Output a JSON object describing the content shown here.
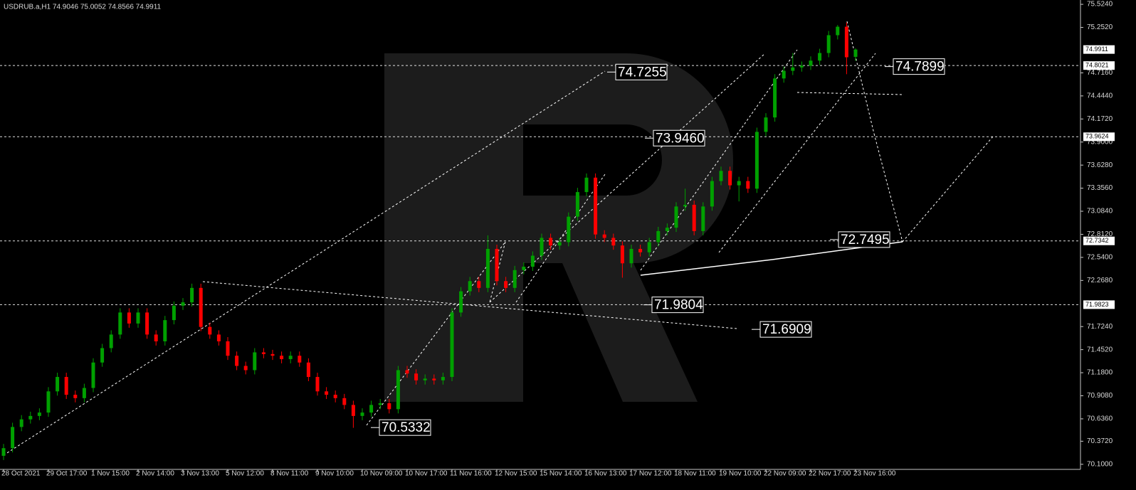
{
  "chart_data": {
    "type": "candlestick",
    "title": "USDRUB.a,H1  74.9046 75.0052 74.8566 74.9911",
    "ylim": [
      70.04,
      75.575
    ],
    "yticks": [
      {
        "value": 75.524,
        "label": "75.5240"
      },
      {
        "value": 75.252,
        "label": "75.2520"
      },
      {
        "value": 74.716,
        "label": "74.7160"
      },
      {
        "value": 74.444,
        "label": "74.4440"
      },
      {
        "value": 74.172,
        "label": "74.1720"
      },
      {
        "value": 73.9,
        "label": "73.9000"
      },
      {
        "value": 73.628,
        "label": "73.6280"
      },
      {
        "value": 73.356,
        "label": "73.3560"
      },
      {
        "value": 73.084,
        "label": "73.0840"
      },
      {
        "value": 72.812,
        "label": "72.8120"
      },
      {
        "value": 72.54,
        "label": "72.5400"
      },
      {
        "value": 72.268,
        "label": "72.2680"
      },
      {
        "value": 71.724,
        "label": "71.7240"
      },
      {
        "value": 71.452,
        "label": "71.4520"
      },
      {
        "value": 71.18,
        "label": "71.1800"
      },
      {
        "value": 70.908,
        "label": "70.9080"
      },
      {
        "value": 70.636,
        "label": "70.6360"
      },
      {
        "value": 70.372,
        "label": "70.3720"
      },
      {
        "value": 70.1,
        "label": "70.1000"
      }
    ],
    "xticks": [
      "28 Oct 2021",
      "29 Oct 17:00",
      "1 Nov 15:00",
      "2 Nov 14:00",
      "3 Nov 13:00",
      "5 Nov 12:00",
      "8 Nov 11:00",
      "9 Nov 10:00",
      "10 Nov 09:00",
      "10 Nov 17:00",
      "11 Nov 16:00",
      "12 Nov 15:00",
      "15 Nov 14:00",
      "16 Nov 13:00",
      "17 Nov 12:00",
      "18 Nov 11:00",
      "19 Nov 10:00",
      "22 Nov 09:00",
      "22 Nov 17:00",
      "23 Nov 16:00"
    ],
    "up_color": "#00a000",
    "down_color": "#ff0000",
    "ohlc": [
      [
        70.2,
        70.34,
        70.15,
        70.29
      ],
      [
        70.29,
        70.59,
        70.24,
        70.54
      ],
      [
        70.54,
        70.68,
        70.49,
        70.63
      ],
      [
        70.63,
        70.72,
        70.58,
        70.67
      ],
      [
        70.67,
        70.76,
        70.62,
        70.71
      ],
      [
        70.71,
        71.01,
        70.66,
        70.96
      ],
      [
        70.96,
        71.18,
        70.91,
        71.13
      ],
      [
        71.13,
        71.18,
        70.87,
        70.92
      ],
      [
        70.92,
        70.97,
        70.83,
        70.88
      ],
      [
        70.88,
        71.05,
        70.83,
        71.0
      ],
      [
        71.0,
        71.35,
        70.95,
        71.3
      ],
      [
        71.3,
        71.52,
        71.25,
        71.47
      ],
      [
        71.47,
        71.68,
        71.42,
        71.63
      ],
      [
        71.63,
        71.94,
        71.58,
        71.89
      ],
      [
        71.89,
        71.94,
        71.71,
        71.76
      ],
      [
        71.76,
        71.94,
        71.71,
        71.89
      ],
      [
        71.89,
        71.94,
        71.58,
        71.63
      ],
      [
        71.63,
        71.68,
        71.5,
        71.55
      ],
      [
        71.55,
        71.85,
        71.5,
        71.8
      ],
      [
        71.8,
        72.02,
        71.75,
        71.97
      ],
      [
        71.97,
        72.06,
        71.92,
        72.01
      ],
      [
        72.01,
        72.23,
        71.96,
        72.18
      ],
      [
        72.18,
        72.23,
        71.67,
        71.72
      ],
      [
        71.72,
        71.77,
        71.58,
        71.63
      ],
      [
        71.63,
        71.68,
        71.5,
        71.55
      ],
      [
        71.55,
        71.6,
        71.33,
        71.38
      ],
      [
        71.38,
        71.43,
        71.21,
        71.26
      ],
      [
        71.26,
        71.31,
        71.16,
        71.21
      ],
      [
        71.21,
        71.47,
        71.16,
        71.42
      ],
      [
        71.42,
        71.47,
        71.35,
        71.4
      ],
      [
        71.4,
        71.45,
        71.33,
        71.38
      ],
      [
        71.38,
        71.43,
        71.29,
        71.34
      ],
      [
        71.34,
        71.43,
        71.29,
        71.38
      ],
      [
        71.38,
        71.43,
        71.25,
        71.3
      ],
      [
        71.3,
        71.35,
        71.08,
        71.13
      ],
      [
        71.13,
        71.18,
        70.91,
        70.96
      ],
      [
        70.96,
        71.01,
        70.87,
        70.92
      ],
      [
        70.92,
        70.97,
        70.83,
        70.88
      ],
      [
        70.88,
        70.93,
        70.75,
        70.8
      ],
      [
        70.8,
        70.85,
        70.53,
        70.67
      ],
      [
        70.67,
        70.76,
        70.62,
        70.71
      ],
      [
        70.71,
        70.85,
        70.66,
        70.8
      ],
      [
        70.8,
        70.87,
        70.75,
        70.82
      ],
      [
        70.82,
        70.87,
        70.7,
        70.75
      ],
      [
        70.75,
        71.26,
        70.7,
        71.21
      ],
      [
        71.21,
        71.26,
        71.12,
        71.17
      ],
      [
        71.17,
        71.22,
        71.04,
        71.09
      ],
      [
        71.09,
        71.16,
        71.04,
        71.11
      ],
      [
        71.11,
        71.16,
        71.04,
        71.09
      ],
      [
        71.09,
        71.18,
        71.04,
        71.13
      ],
      [
        71.13,
        71.94,
        71.08,
        71.89
      ],
      [
        71.89,
        72.19,
        71.84,
        72.14
      ],
      [
        72.14,
        72.31,
        72.09,
        72.26
      ],
      [
        72.26,
        72.31,
        72.13,
        72.18
      ],
      [
        72.18,
        72.8,
        72.13,
        72.64
      ],
      [
        72.64,
        72.69,
        72.21,
        72.26
      ],
      [
        72.26,
        72.31,
        72.13,
        72.18
      ],
      [
        72.18,
        72.44,
        72.13,
        72.39
      ],
      [
        72.39,
        72.48,
        72.34,
        72.43
      ],
      [
        72.43,
        72.61,
        72.38,
        72.56
      ],
      [
        72.56,
        72.82,
        72.51,
        72.77
      ],
      [
        72.77,
        72.82,
        72.63,
        72.68
      ],
      [
        72.68,
        72.77,
        72.63,
        72.72
      ],
      [
        72.72,
        73.07,
        72.67,
        73.02
      ],
      [
        73.02,
        73.36,
        72.97,
        73.31
      ],
      [
        73.31,
        73.53,
        73.26,
        73.48
      ],
      [
        73.48,
        73.53,
        72.76,
        72.81
      ],
      [
        72.81,
        72.86,
        72.72,
        72.77
      ],
      [
        72.77,
        72.82,
        72.63,
        72.68
      ],
      [
        72.68,
        72.73,
        72.3,
        72.47
      ],
      [
        72.47,
        72.69,
        72.42,
        72.64
      ],
      [
        72.64,
        72.69,
        72.55,
        72.6
      ],
      [
        72.6,
        72.77,
        72.55,
        72.72
      ],
      [
        72.72,
        72.9,
        72.67,
        72.85
      ],
      [
        72.85,
        72.94,
        72.8,
        72.89
      ],
      [
        72.89,
        73.19,
        72.84,
        73.14
      ],
      [
        73.14,
        73.35,
        73.09,
        73.16
      ],
      [
        73.16,
        73.21,
        72.8,
        72.85
      ],
      [
        72.85,
        73.19,
        72.8,
        73.14
      ],
      [
        73.14,
        73.49,
        73.09,
        73.44
      ],
      [
        73.44,
        73.61,
        73.39,
        73.56
      ],
      [
        73.56,
        73.61,
        73.34,
        73.39
      ],
      [
        73.39,
        73.49,
        73.2,
        73.44
      ],
      [
        73.44,
        73.49,
        73.3,
        73.35
      ],
      [
        73.35,
        74.07,
        73.3,
        74.02
      ],
      [
        74.02,
        74.24,
        73.97,
        74.19
      ],
      [
        74.19,
        74.7,
        74.14,
        74.65
      ],
      [
        74.65,
        74.79,
        74.6,
        74.74
      ],
      [
        74.74,
        74.95,
        74.69,
        74.78
      ],
      [
        74.78,
        74.85,
        74.73,
        74.8
      ],
      [
        74.8,
        74.91,
        74.75,
        74.86
      ],
      [
        74.86,
        75.0,
        74.81,
        74.95
      ],
      [
        74.95,
        75.21,
        74.9,
        75.16
      ],
      [
        75.16,
        75.28,
        75.11,
        75.26
      ],
      [
        75.26,
        75.31,
        74.7,
        74.9
      ],
      [
        74.9046,
        75.0052,
        74.8566,
        74.9911
      ]
    ],
    "current_price": {
      "value": 74.9911,
      "label": "74.9911"
    },
    "levels_right": [
      {
        "value": 74.8021,
        "label": "74.8021"
      },
      {
        "value": 73.9624,
        "label": "73.9624"
      },
      {
        "value": 72.7342,
        "label": "72.7342"
      },
      {
        "value": 71.9823,
        "label": "71.9823"
      }
    ],
    "targets": [
      {
        "value": 74.7255,
        "label": "74.7255"
      },
      {
        "value": 73.946,
        "label": "73.9460"
      },
      {
        "value": 71.9804,
        "label": "71.9804"
      },
      {
        "value": 71.6909,
        "label": "71.6909"
      },
      {
        "value": 70.5332,
        "label": "70.5332"
      },
      {
        "value": 74.7899,
        "label": "74.7899"
      },
      {
        "value": 72.7495,
        "label": "72.7495"
      }
    ]
  }
}
